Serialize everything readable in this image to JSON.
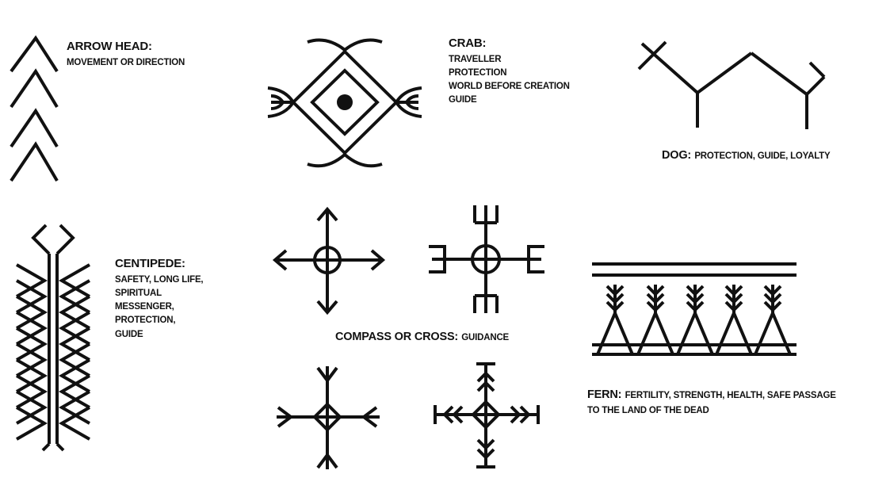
{
  "arrowhead": {
    "title": "ARROW HEAD:",
    "description": "MOVEMENT OR DIRECTION"
  },
  "crab": {
    "title": "CRAB:",
    "lines": [
      "TRAVELLER",
      "PROTECTION",
      "WORLD BEFORE CREATION",
      "GUIDE"
    ]
  },
  "dog": {
    "title": "DOG:",
    "description": "PROTECTION, GUIDE, LOYALTY"
  },
  "centipede": {
    "title": "CENTIPEDE:",
    "lines": [
      "SAFETY, LONG LIFE,",
      "SPIRITUAL",
      "MESSENGER,",
      "PROTECTION,",
      "GUIDE"
    ]
  },
  "compass": {
    "title": "COMPASS OR CROSS:",
    "description": "GUIDANCE"
  },
  "fern": {
    "title": "FERN:",
    "description_line1": "FERTILITY, STRENGTH, HEALTH, SAFE PASSAGE",
    "description_line2": "TO THE LAND OF THE DEAD"
  },
  "colors": {
    "ink": "#111111",
    "background": "#ffffff"
  }
}
